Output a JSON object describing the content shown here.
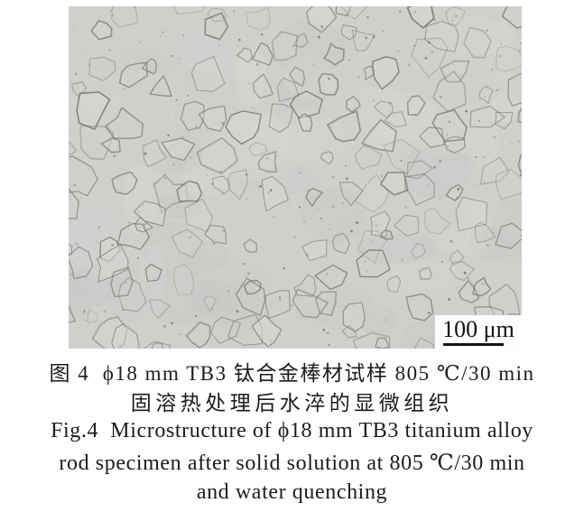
{
  "figure": {
    "micrograph": {
      "background_color": "#d2d1ce",
      "boundary_color": "#76736d",
      "scale_bar": {
        "label": "100 μm"
      }
    },
    "caption": {
      "zh_line1": "图 4  ϕ18 mm TB3 钛合金棒材试样 805 ℃/30 min",
      "zh_line2": "固溶热处理后水淬的显微组织",
      "en_line1": "Fig.4  Microstructure of ϕ18 mm TB3 titanium alloy",
      "en_line2": "rod specimen after solid solution at 805 ℃/30 min",
      "en_line3": "and water quenching"
    }
  }
}
